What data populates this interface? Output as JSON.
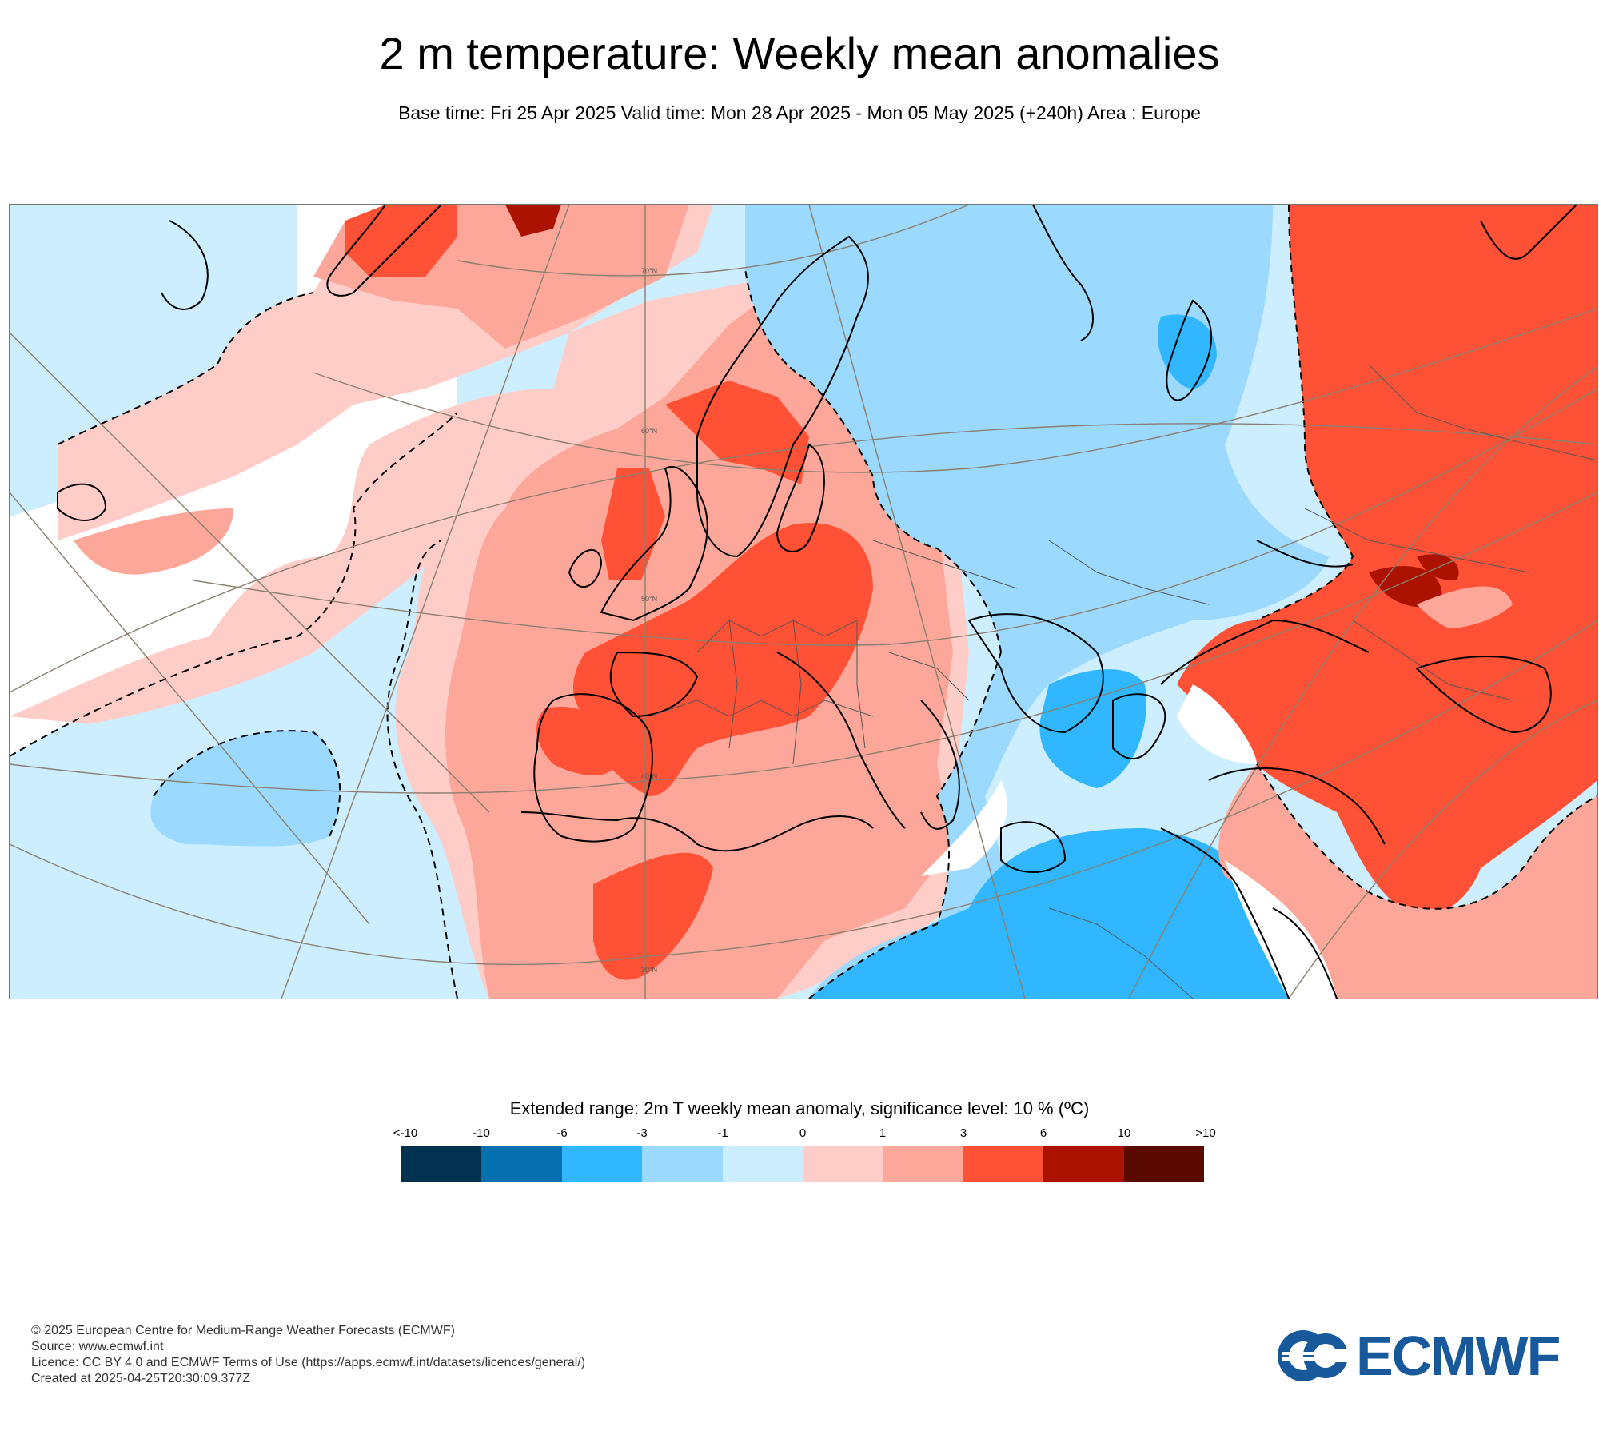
{
  "header": {
    "title": "2 m temperature: Weekly mean anomalies",
    "subtitle": "Base time: Fri 25 Apr 2025 Valid time: Mon 28 Apr 2025 - Mon 05 May 2025 (+240h) Area : Europe"
  },
  "map": {
    "area": "Europe",
    "latitude_labels": [
      "70°N",
      "60°N",
      "50°N",
      "40°N",
      "30°N"
    ]
  },
  "legend": {
    "title": "Extended range: 2m T weekly mean anomaly, significance level: 10 % (ºC)",
    "ticks": [
      "<-10",
      "-10",
      "-6",
      "-3",
      "-1",
      "0",
      "1",
      "3",
      "6",
      "10",
      ">10"
    ],
    "colors": [
      "#02324f",
      "#0570b0",
      "#30b7ff",
      "#9bd9ff",
      "#cdeeff",
      "#ffcdc8",
      "#fca799",
      "#fe5135",
      "#ab1300",
      "#5b0a00"
    ]
  },
  "footer": {
    "copyright": "© 2025 European Centre for Medium-Range Weather Forecasts (ECMWF)",
    "source": "Source: www.ecmwf.int",
    "licence": "Licence: CC BY 4.0 and ECMWF Terms of Use (https://apps.ecmwf.int/datasets/licences/general/)",
    "created": "Created at 2025-04-25T20:30:09.377Z"
  },
  "logo": {
    "text": "ECMWF",
    "color": "#17599a"
  }
}
